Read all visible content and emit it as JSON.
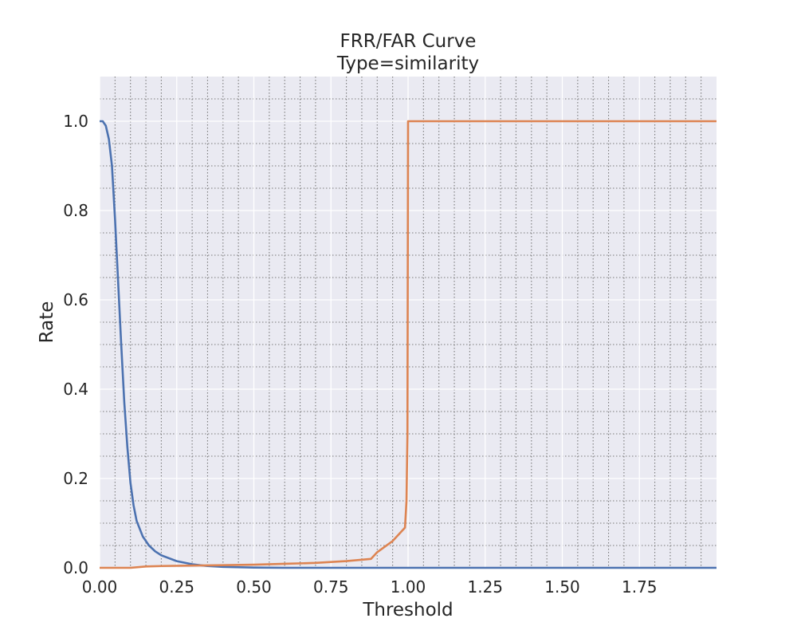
{
  "chart_data": {
    "type": "line",
    "title": "FRR/FAR Curve",
    "subtitle": "Type=similarity",
    "xlabel": "Threshold",
    "ylabel": "Rate",
    "xlim": [
      0,
      2.0
    ],
    "ylim": [
      0,
      1.1
    ],
    "x_ticks": [
      0.0,
      0.25,
      0.5,
      0.75,
      1.0,
      1.25,
      1.5,
      1.75
    ],
    "x_tick_labels": [
      "0.00",
      "0.25",
      "0.50",
      "0.75",
      "1.00",
      "1.25",
      "1.50",
      "1.75"
    ],
    "y_ticks": [
      0.0,
      0.2,
      0.4,
      0.6,
      0.8,
      1.0
    ],
    "y_tick_labels": [
      "0.0",
      "0.2",
      "0.4",
      "0.6",
      "0.8",
      "1.0"
    ],
    "grid": true,
    "minor_grid": true,
    "background": "#eaeaf2",
    "series": [
      {
        "color": "#4c72b0",
        "points": [
          [
            0.0,
            1.0
          ],
          [
            0.01,
            1.0
          ],
          [
            0.02,
            0.99
          ],
          [
            0.03,
            0.96
          ],
          [
            0.04,
            0.9
          ],
          [
            0.05,
            0.78
          ],
          [
            0.06,
            0.64
          ],
          [
            0.07,
            0.5
          ],
          [
            0.08,
            0.37
          ],
          [
            0.09,
            0.27
          ],
          [
            0.1,
            0.19
          ],
          [
            0.11,
            0.14
          ],
          [
            0.12,
            0.105
          ],
          [
            0.14,
            0.07
          ],
          [
            0.16,
            0.05
          ],
          [
            0.18,
            0.037
          ],
          [
            0.2,
            0.028
          ],
          [
            0.25,
            0.015
          ],
          [
            0.3,
            0.008
          ],
          [
            0.35,
            0.004
          ],
          [
            0.4,
            0.002
          ],
          [
            0.5,
            0.0005
          ],
          [
            0.6,
            0.0
          ],
          [
            1.0,
            0.0
          ],
          [
            2.0,
            0.0
          ]
        ]
      },
      {
        "color": "#dd8452",
        "points": [
          [
            0.0,
            0.0
          ],
          [
            0.1,
            0.0
          ],
          [
            0.15,
            0.003
          ],
          [
            0.2,
            0.004
          ],
          [
            0.3,
            0.005
          ],
          [
            0.4,
            0.006
          ],
          [
            0.5,
            0.007
          ],
          [
            0.6,
            0.009
          ],
          [
            0.7,
            0.011
          ],
          [
            0.75,
            0.013
          ],
          [
            0.8,
            0.015
          ],
          [
            0.88,
            0.02
          ],
          [
            0.9,
            0.035
          ],
          [
            0.95,
            0.06
          ],
          [
            0.99,
            0.09
          ],
          [
            0.995,
            0.15
          ],
          [
            0.998,
            0.3
          ],
          [
            1.0,
            1.0
          ],
          [
            1.5,
            1.0
          ],
          [
            2.0,
            1.0
          ]
        ]
      }
    ]
  }
}
